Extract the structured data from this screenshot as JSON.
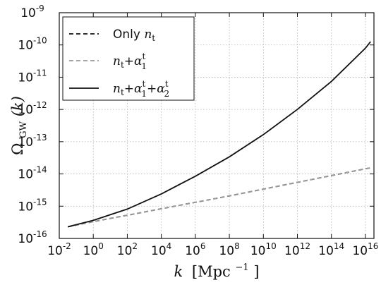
{
  "chart_data": {
    "type": "line",
    "title": "",
    "xlabel": {
      "var": "k",
      "unit": "[Mpc",
      "unit_exp": "−1",
      "unit_close": "]"
    },
    "ylabel": {
      "base": "Ω",
      "sub": "GW",
      "arg": "(k)"
    },
    "x_log10_range": [
      -2,
      16.5
    ],
    "y_log10_range": [
      -16,
      -9
    ],
    "x_scale": "log",
    "y_scale": "log",
    "grid": true,
    "legend_position": "top-left",
    "x_ticks": [
      {
        "base": "10",
        "exp": "-2"
      },
      {
        "base": "10",
        "exp": "0"
      },
      {
        "base": "10",
        "exp": "2"
      },
      {
        "base": "10",
        "exp": "4"
      },
      {
        "base": "10",
        "exp": "6"
      },
      {
        "base": "10",
        "exp": "8"
      },
      {
        "base": "10",
        "exp": "10"
      },
      {
        "base": "10",
        "exp": "12"
      },
      {
        "base": "10",
        "exp": "14"
      },
      {
        "base": "10",
        "exp": "16"
      }
    ],
    "y_ticks": [
      {
        "base": "10",
        "exp": "-16"
      },
      {
        "base": "10",
        "exp": "-15"
      },
      {
        "base": "10",
        "exp": "-14"
      },
      {
        "base": "10",
        "exp": "-13"
      },
      {
        "base": "10",
        "exp": "-12"
      },
      {
        "base": "10",
        "exp": "-11"
      },
      {
        "base": "10",
        "exp": "-10"
      },
      {
        "base": "10",
        "exp": "-9"
      }
    ],
    "series": [
      {
        "legend": {
          "prefix": "Only ",
          "var": "n",
          "sub": "t"
        },
        "style": "dashed",
        "color": "#111111",
        "points": [
          {
            "log10_k": -1.5,
            "log10_omega": -15.64
          },
          {
            "log10_k": 0,
            "log10_omega": -15.48
          },
          {
            "log10_k": 2,
            "log10_omega": -15.28
          },
          {
            "log10_k": 4,
            "log10_omega": -15.08
          },
          {
            "log10_k": 6,
            "log10_omega": -14.88
          },
          {
            "log10_k": 8,
            "log10_omega": -14.68
          },
          {
            "log10_k": 10,
            "log10_omega": -14.47
          },
          {
            "log10_k": 12,
            "log10_omega": -14.26
          },
          {
            "log10_k": 14,
            "log10_omega": -14.05
          },
          {
            "log10_k": 16,
            "log10_omega": -13.84
          },
          {
            "log10_k": 16.3,
            "log10_omega": -13.81
          }
        ]
      },
      {
        "legend": {
          "prefix": "",
          "var": "n",
          "sub": "t",
          "terms": [
            {
              "sym": "α",
              "sup": "t",
              "sub": "1"
            }
          ]
        },
        "style": "dashed",
        "color": "#999999",
        "points": [
          {
            "log10_k": -1.5,
            "log10_omega": -15.64
          },
          {
            "log10_k": 0,
            "log10_omega": -15.48
          },
          {
            "log10_k": 2,
            "log10_omega": -15.28
          },
          {
            "log10_k": 4,
            "log10_omega": -15.08
          },
          {
            "log10_k": 6,
            "log10_omega": -14.88
          },
          {
            "log10_k": 8,
            "log10_omega": -14.68
          },
          {
            "log10_k": 10,
            "log10_omega": -14.47
          },
          {
            "log10_k": 12,
            "log10_omega": -14.26
          },
          {
            "log10_k": 14,
            "log10_omega": -14.05
          },
          {
            "log10_k": 16,
            "log10_omega": -13.84
          },
          {
            "log10_k": 16.3,
            "log10_omega": -13.81
          }
        ]
      },
      {
        "legend": {
          "prefix": "",
          "var": "n",
          "sub": "t",
          "terms": [
            {
              "sym": "α",
              "sup": "t",
              "sub": "1"
            },
            {
              "sym": "α",
              "sup": "t",
              "sub": "2"
            }
          ]
        },
        "style": "solid",
        "color": "#111111",
        "points": [
          {
            "log10_k": -1.5,
            "log10_omega": -15.64
          },
          {
            "log10_k": 0,
            "log10_omega": -15.44
          },
          {
            "log10_k": 2,
            "log10_omega": -15.09
          },
          {
            "log10_k": 4,
            "log10_omega": -14.62
          },
          {
            "log10_k": 6,
            "log10_omega": -14.07
          },
          {
            "log10_k": 8,
            "log10_omega": -13.47
          },
          {
            "log10_k": 10,
            "log10_omega": -12.78
          },
          {
            "log10_k": 12,
            "log10_omega": -12.0
          },
          {
            "log10_k": 14,
            "log10_omega": -11.13
          },
          {
            "log10_k": 16,
            "log10_omega": -10.1
          },
          {
            "log10_k": 16.3,
            "log10_omega": -9.9
          }
        ]
      }
    ]
  }
}
